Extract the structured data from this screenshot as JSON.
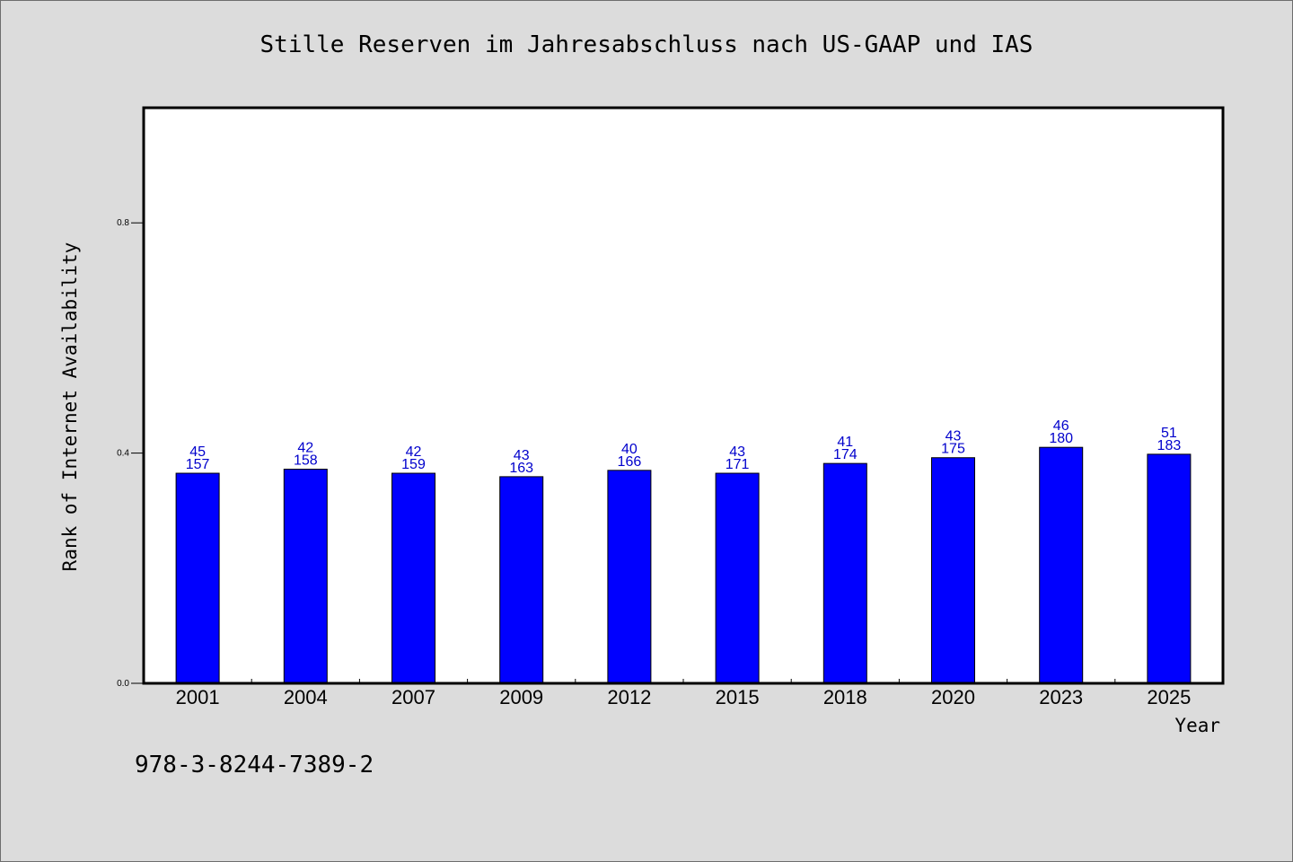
{
  "chart_data": {
    "type": "bar",
    "title": "Stille Reserven im Jahresabschluss nach US-GAAP und IAS",
    "xlabel": "Year",
    "ylabel": "Rank of Internet Availability",
    "ylim": [
      0.0,
      1.0
    ],
    "yticks": [
      0.0,
      0.4,
      0.8
    ],
    "ytick_labels": [
      "0.0",
      "0.4",
      "0.8"
    ],
    "categories": [
      "2001",
      "2004",
      "2007",
      "2009",
      "2012",
      "2015",
      "2018",
      "2020",
      "2023",
      "2025"
    ],
    "values": [
      0.365,
      0.372,
      0.365,
      0.359,
      0.37,
      0.365,
      0.382,
      0.392,
      0.41,
      0.398
    ],
    "labels_top": [
      "45",
      "42",
      "42",
      "43",
      "40",
      "43",
      "41",
      "43",
      "46",
      "51"
    ],
    "labels_bottom": [
      "157",
      "158",
      "159",
      "163",
      "166",
      "171",
      "174",
      "175",
      "180",
      "183"
    ],
    "grid": false,
    "bar_color": "#0000ff",
    "label_color": "#0000cc"
  },
  "footer": {
    "text": "978-3-8244-7389-2"
  }
}
